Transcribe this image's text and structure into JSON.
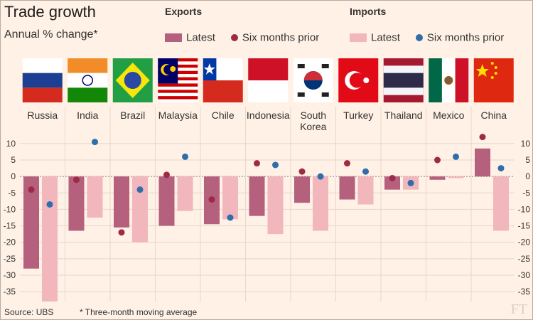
{
  "header": {
    "title": "Trade growth",
    "subtitle": "Annual % change*"
  },
  "legend": {
    "exports": {
      "heading": "Exports",
      "latest_label": "Latest",
      "prior_label": "Six months prior"
    },
    "imports": {
      "heading": "Imports",
      "latest_label": "Latest",
      "prior_label": "Six months prior"
    }
  },
  "colors": {
    "exports_bar": "#b5617e",
    "exports_dot": "#9e2a47",
    "imports_bar": "#f2b6bd",
    "imports_dot": "#2f6eaa",
    "background": "#fff1e5"
  },
  "footer": {
    "source": "Source: UBS",
    "note": "* Three-month moving average",
    "brand": "FT"
  },
  "chart_data": {
    "type": "bar",
    "title": "Trade growth",
    "subtitle": "Annual % change*",
    "categories": [
      "Russia",
      "India",
      "Brazil",
      "Malaysia",
      "Chile",
      "Indonesia",
      "South Korea",
      "Turkey",
      "Thailand",
      "Mexico",
      "China"
    ],
    "category_labels": [
      [
        "Russia"
      ],
      [
        "India"
      ],
      [
        "Brazil"
      ],
      [
        "Malaysia"
      ],
      [
        "Chile"
      ],
      [
        "Indonesia"
      ],
      [
        "South",
        "Korea"
      ],
      [
        "Turkey"
      ],
      [
        "Thailand"
      ],
      [
        "Mexico"
      ],
      [
        "China"
      ]
    ],
    "flags": [
      "russia-flag",
      "india-flag",
      "brazil-flag",
      "malaysia-flag",
      "chile-flag",
      "indonesia-flag",
      "south-korea-flag",
      "turkey-flag",
      "thailand-flag",
      "mexico-flag",
      "china-flag"
    ],
    "series": [
      {
        "name": "Exports Latest",
        "kind": "bar",
        "values": [
          -28,
          -16.5,
          -15.5,
          -15,
          -14.5,
          -12,
          -8,
          -7,
          -4,
          -1,
          8.5
        ]
      },
      {
        "name": "Imports Latest",
        "kind": "bar",
        "values": [
          -38,
          -12.5,
          -20,
          -10.5,
          -13,
          -17.5,
          -16.5,
          -8.5,
          -4,
          -0.5,
          -16.5
        ]
      },
      {
        "name": "Exports Six months prior",
        "kind": "dot",
        "values": [
          -4,
          -1,
          -17,
          0.5,
          -7,
          4,
          1.5,
          4,
          -0.5,
          5,
          12
        ]
      },
      {
        "name": "Imports Six months prior",
        "kind": "dot",
        "values": [
          -8.5,
          10.5,
          -4,
          6,
          -12.5,
          3.5,
          0,
          1.5,
          -2,
          6,
          2.5
        ]
      }
    ],
    "ylim": [
      -38,
      13
    ],
    "yticks": [
      10,
      5,
      0,
      -5,
      -10,
      -15,
      -20,
      -25,
      -30,
      -35
    ],
    "xlabel": "",
    "ylabel": "",
    "grid": true
  }
}
